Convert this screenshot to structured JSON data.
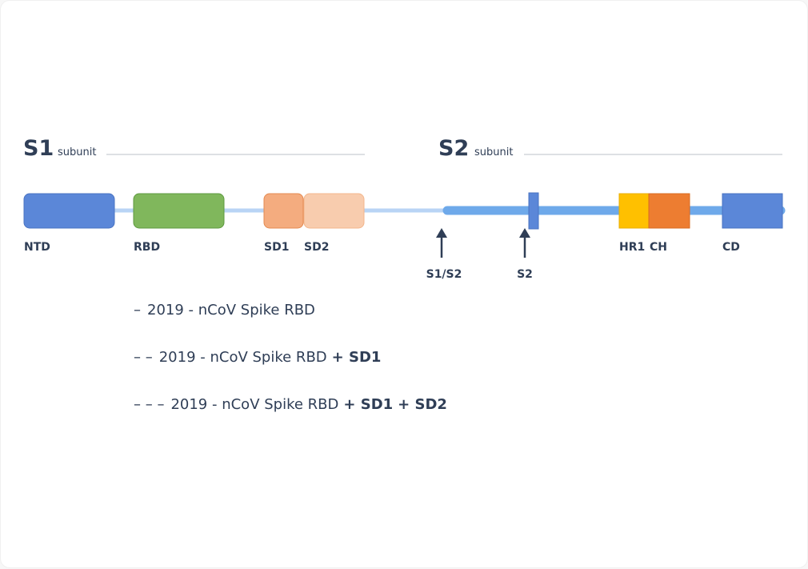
{
  "subunits": [
    {
      "name": "S1",
      "label": "subunit"
    },
    {
      "name": "S2",
      "label": "subunit"
    }
  ],
  "domains": [
    "NTD",
    "RBD",
    "SD1",
    "SD2",
    "HR1",
    "CH",
    "CD"
  ],
  "sites": [
    "S1/S2",
    "S2"
  ],
  "legend": [
    {
      "marker": "–",
      "label": "2019 - nCoV Spike RBD",
      "extras": []
    },
    {
      "marker": "– –",
      "label": "2019 - nCoV Spike RBD",
      "extras": [
        "+ SD1"
      ]
    },
    {
      "marker": "– – –",
      "label": "2019 - nCoV Spike RBD",
      "extras": [
        "+ SD1",
        "+ SD2"
      ]
    }
  ]
}
